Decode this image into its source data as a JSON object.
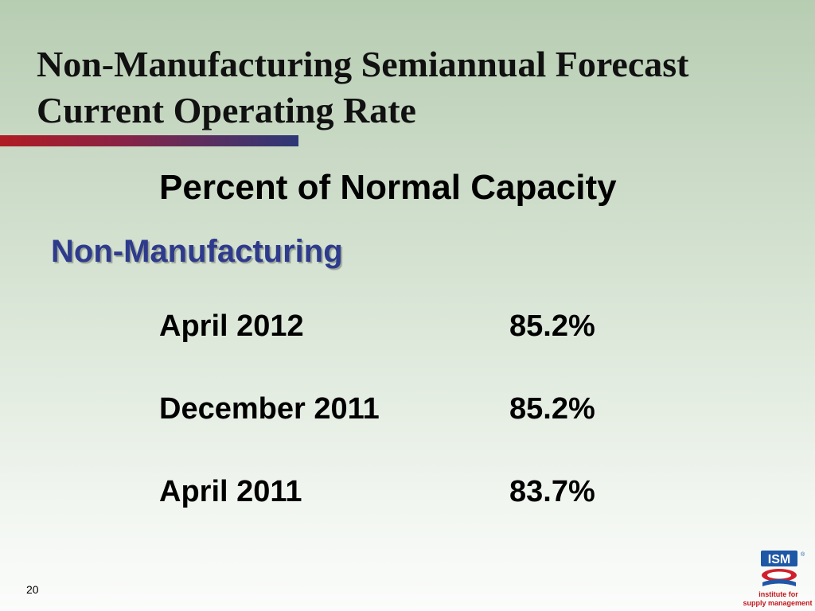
{
  "slide": {
    "title_line1": "Non-Manufacturing Semiannual Forecast",
    "title_line2": "Current Operating Rate",
    "subtitle": "Percent of Normal Capacity",
    "section": "Non-Manufacturing",
    "rows": [
      {
        "period": "April 2012",
        "value": "85.2%"
      },
      {
        "period": "December 2011",
        "value": "85.2%"
      },
      {
        "period": "April 2011",
        "value": "83.7%"
      }
    ],
    "slide_number": "20"
  },
  "logo": {
    "name": "ism-logo-icon",
    "wordmark": "ISM",
    "registered": "®",
    "line1": "institute for",
    "line2": "supply management"
  },
  "colors": {
    "title": "#111111",
    "section_label": "#2e3a8c",
    "accent_bar_start": "#b01c23",
    "accent_bar_end": "#2d3776",
    "logo_blue": "#1f57a7",
    "logo_red": "#d0202c"
  }
}
